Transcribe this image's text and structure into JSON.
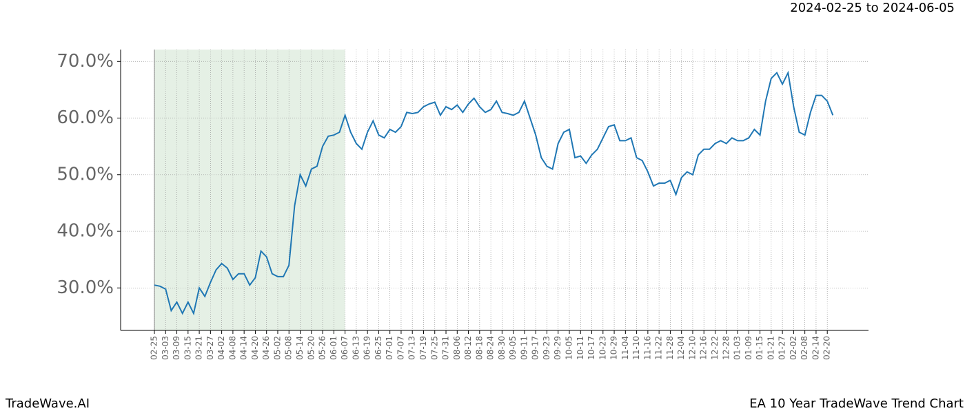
{
  "chart_data": {
    "type": "line",
    "title": "2024-02-25 to 2024-06-05",
    "footer_left": "TradeWave.AI",
    "footer_right": "EA 10 Year TradeWave Trend Chart",
    "categories": [
      "02-25",
      null,
      "03-03",
      null,
      "03-09",
      null,
      "03-15",
      null,
      "03-21",
      null,
      "03-27",
      null,
      "04-02",
      null,
      "04-08",
      null,
      "04-14",
      null,
      "04-20",
      null,
      "04-26",
      null,
      "05-02",
      null,
      "05-08",
      null,
      "05-14",
      null,
      "05-20",
      null,
      "05-26",
      null,
      "06-01",
      null,
      "06-07",
      null,
      "06-13",
      null,
      "06-19",
      null,
      "06-25",
      null,
      "07-01",
      null,
      "07-07",
      null,
      "07-13",
      null,
      "07-19",
      null,
      "07-25",
      null,
      "07-31",
      null,
      "08-06",
      null,
      "08-12",
      null,
      "08-18",
      null,
      "08-24",
      null,
      "08-30",
      null,
      "09-05",
      null,
      "09-11",
      null,
      "09-17",
      null,
      "09-23",
      null,
      "09-29",
      null,
      "10-05",
      null,
      "10-11",
      null,
      "10-17",
      null,
      "10-23",
      null,
      "10-29",
      null,
      "11-04",
      null,
      "11-10",
      null,
      "11-16",
      null,
      "11-22",
      null,
      "11-28",
      null,
      "12-04",
      null,
      "12-10",
      null,
      "12-16",
      null,
      "12-22",
      null,
      "12-28",
      null,
      "01-03",
      null,
      "01-09",
      null,
      "01-15",
      null,
      "01-21",
      null,
      "01-27",
      null,
      "02-02",
      null,
      "02-08",
      null,
      "02-14",
      null,
      "02-20",
      null
    ],
    "series": [
      {
        "color": "#1f77b4",
        "values": [
          30.5,
          30.3,
          29.8,
          26,
          27.5,
          25.5,
          27.5,
          25.5,
          30,
          28.5,
          31,
          33.2,
          34.3,
          33.5,
          31.5,
          32.5,
          32.5,
          30.5,
          31.8,
          36.5,
          35.5,
          32.5,
          32,
          32,
          34,
          44.5,
          50,
          48,
          51,
          51.5,
          55,
          56.8,
          57,
          57.5,
          60.5,
          57.5,
          55.5,
          54.5,
          57.5,
          59.5,
          57,
          56.5,
          58,
          57.5,
          58.5,
          61,
          60.8,
          61,
          62,
          62.5,
          62.8,
          60.5,
          62,
          61.5,
          62.3,
          61,
          62.5,
          63.5,
          62,
          61,
          61.5,
          63,
          61,
          60.8,
          60.5,
          61,
          63,
          60,
          57,
          53,
          51.5,
          51,
          55.5,
          57.5,
          58,
          53,
          53.3,
          52,
          53.5,
          54.5,
          56.5,
          58.5,
          58.8,
          56,
          56,
          56.5,
          53,
          52.5,
          50.5,
          48,
          48.5,
          48.5,
          49,
          46.5,
          49.5,
          50.5,
          50,
          53.5,
          54.5,
          54.5,
          55.5,
          56,
          55.5,
          56.5,
          56,
          56,
          56.5,
          58,
          57,
          63,
          67,
          68,
          66,
          68,
          62,
          57.5,
          57,
          61,
          64,
          64,
          63,
          60.5
        ]
      }
    ],
    "shade": {
      "from": "02-25",
      "to": "06-07",
      "color": "#e5f0e5"
    },
    "ylim": [
      22.5,
      72.1
    ],
    "yticks": [
      {
        "value": 30,
        "label": "30.0%"
      },
      {
        "value": 40,
        "label": "40.0%"
      },
      {
        "value": 50,
        "label": "50.0%"
      },
      {
        "value": 60,
        "label": "60.0%"
      },
      {
        "value": 70,
        "label": "70.0%"
      }
    ],
    "grid": true
  }
}
